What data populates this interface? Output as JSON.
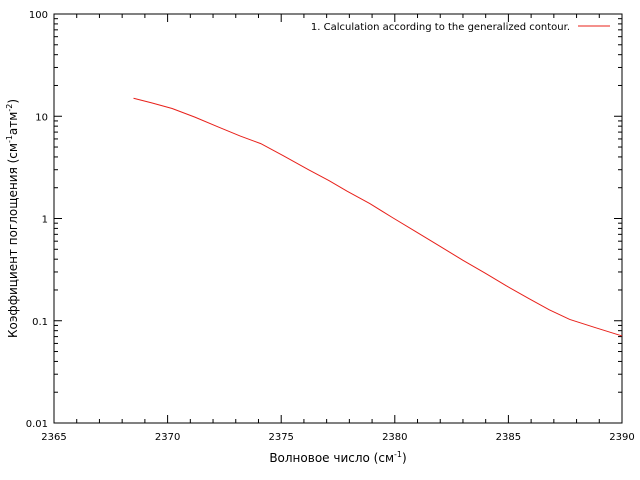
{
  "chart_data": {
    "type": "line",
    "xlabel": "Волновое число (см",
    "xlabel_sup": "-1",
    "xlabel_end": ")",
    "ylabel": "Коэффициент поглощения (см",
    "ylabel_sup1": "-1",
    "ylabel_mid": "атм",
    "ylabel_sup2": "-2",
    "ylabel_end": ")",
    "xlim": [
      2365,
      2390
    ],
    "ylim": [
      0.01,
      100
    ],
    "y_scale": "log",
    "x_ticks": [
      "2365",
      "2370",
      "2375",
      "2380",
      "2385",
      "2390"
    ],
    "y_ticks": [
      "0.01",
      "0.1",
      "1",
      "10",
      "100"
    ],
    "grid": false,
    "legend_position": "top-right",
    "series": [
      {
        "name": "1. Calculation according to the generalized contour.",
        "color": "#e8201a",
        "x": [
          2368.5,
          2369.3,
          2370.2,
          2371.2,
          2372.2,
          2373.2,
          2374.1,
          2375.1,
          2376.2,
          2377.1,
          2377.9,
          2378.9,
          2379.9,
          2380.9,
          2381.9,
          2383.0,
          2384.0,
          2384.9,
          2385.9,
          2386.8,
          2387.7,
          2388.8,
          2390.0
        ],
        "y": [
          15.0,
          13.5,
          11.9,
          9.8,
          7.9,
          6.4,
          5.4,
          4.1,
          3.0,
          2.35,
          1.85,
          1.4,
          1.02,
          0.75,
          0.55,
          0.39,
          0.29,
          0.22,
          0.165,
          0.128,
          0.103,
          0.086,
          0.071
        ]
      }
    ]
  }
}
